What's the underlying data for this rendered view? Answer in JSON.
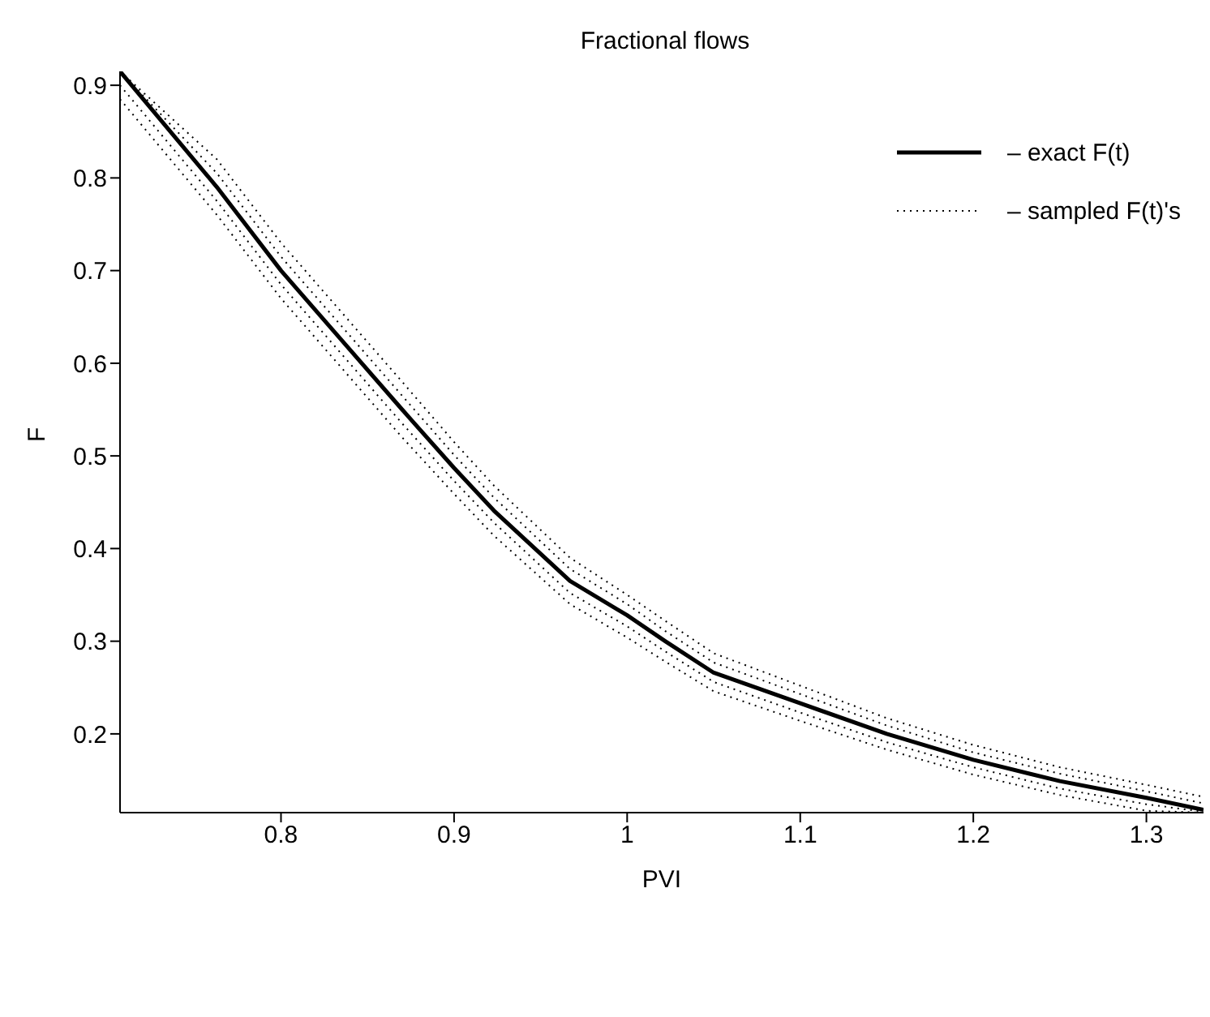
{
  "chart_data": {
    "type": "line",
    "title": "Fractional flows",
    "xlabel": "PVI",
    "ylabel": "F",
    "x": [
      0.707,
      0.763,
      0.8,
      0.835,
      0.87,
      0.9,
      0.923,
      0.967,
      1.0,
      1.022,
      1.05,
      1.1,
      1.15,
      1.2,
      1.25,
      1.3,
      1.333
    ],
    "xlim": [
      0.707,
      1.333
    ],
    "xticks": [
      0.8,
      0.9,
      1,
      1.1,
      1.2,
      1.3
    ],
    "ylim": [
      0.115,
      0.915
    ],
    "yticks": [
      0.2,
      0.3,
      0.4,
      0.5,
      0.6,
      0.7,
      0.8,
      0.9
    ],
    "grid": false,
    "legend": "top right",
    "marker": "none",
    "series": [
      {
        "name": "– sampled F(t)'s",
        "color": "#000000",
        "line_style": "dotted",
        "values": [
          0.915,
          0.82,
          0.73,
          0.655,
          0.58,
          0.515,
          0.468,
          0.39,
          0.35,
          0.322,
          0.287,
          0.252,
          0.217,
          0.188,
          0.164,
          0.145,
          0.132
        ]
      },
      {
        "color": "#000000",
        "line_style": "dotted",
        "values": [
          0.915,
          0.805,
          0.715,
          0.64,
          0.565,
          0.501,
          0.455,
          0.378,
          0.34,
          0.311,
          0.277,
          0.243,
          0.209,
          0.18,
          0.157,
          0.138,
          0.125
        ]
      },
      {
        "color": "#000000",
        "line_style": "dotted",
        "values": [
          0.9,
          0.775,
          0.685,
          0.61,
          0.535,
          0.473,
          0.428,
          0.352,
          0.316,
          0.289,
          0.256,
          0.223,
          0.191,
          0.164,
          0.141,
          0.124,
          0.116
        ]
      },
      {
        "color": "#000000",
        "line_style": "dotted",
        "values": [
          0.885,
          0.76,
          0.67,
          0.595,
          0.52,
          0.459,
          0.414,
          0.34,
          0.304,
          0.278,
          0.246,
          0.214,
          0.183,
          0.156,
          0.134,
          0.117,
          0.115
        ]
      },
      {
        "name": "– exact F(t)",
        "color": "#000000",
        "line_style": "solid",
        "values": [
          0.915,
          0.79,
          0.7,
          0.625,
          0.55,
          0.487,
          0.441,
          0.365,
          0.328,
          0.3,
          0.266,
          0.233,
          0.2,
          0.172,
          0.149,
          0.131,
          0.118
        ]
      }
    ]
  }
}
